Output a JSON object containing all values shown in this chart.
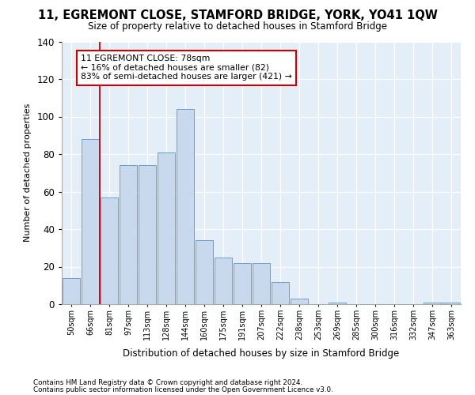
{
  "title": "11, EGREMONT CLOSE, STAMFORD BRIDGE, YORK, YO41 1QW",
  "subtitle": "Size of property relative to detached houses in Stamford Bridge",
  "xlabel": "Distribution of detached houses by size in Stamford Bridge",
  "ylabel": "Number of detached properties",
  "bar_color": "#c8d9ee",
  "bar_edge_color": "#6a9fd0",
  "bg_color": "#e4eef8",
  "categories": [
    "50sqm",
    "66sqm",
    "81sqm",
    "97sqm",
    "113sqm",
    "128sqm",
    "144sqm",
    "160sqm",
    "175sqm",
    "191sqm",
    "207sqm",
    "222sqm",
    "238sqm",
    "253sqm",
    "269sqm",
    "285sqm",
    "300sqm",
    "316sqm",
    "332sqm",
    "347sqm",
    "363sqm"
  ],
  "values": [
    14,
    88,
    57,
    74,
    74,
    81,
    104,
    34,
    25,
    22,
    22,
    12,
    3,
    0,
    1,
    0,
    0,
    0,
    0,
    1,
    1
  ],
  "ylim": [
    0,
    140
  ],
  "yticks": [
    0,
    20,
    40,
    60,
    80,
    100,
    120,
    140
  ],
  "red_line_x": 2,
  "annotation_text": "11 EGREMONT CLOSE: 78sqm\n← 16% of detached houses are smaller (82)\n83% of semi-detached houses are larger (421) →",
  "annotation_box_color": "#ffffff",
  "annotation_box_edge": "#cc0000",
  "footer1": "Contains HM Land Registry data © Crown copyright and database right 2024.",
  "footer2": "Contains public sector information licensed under the Open Government Licence v3.0."
}
